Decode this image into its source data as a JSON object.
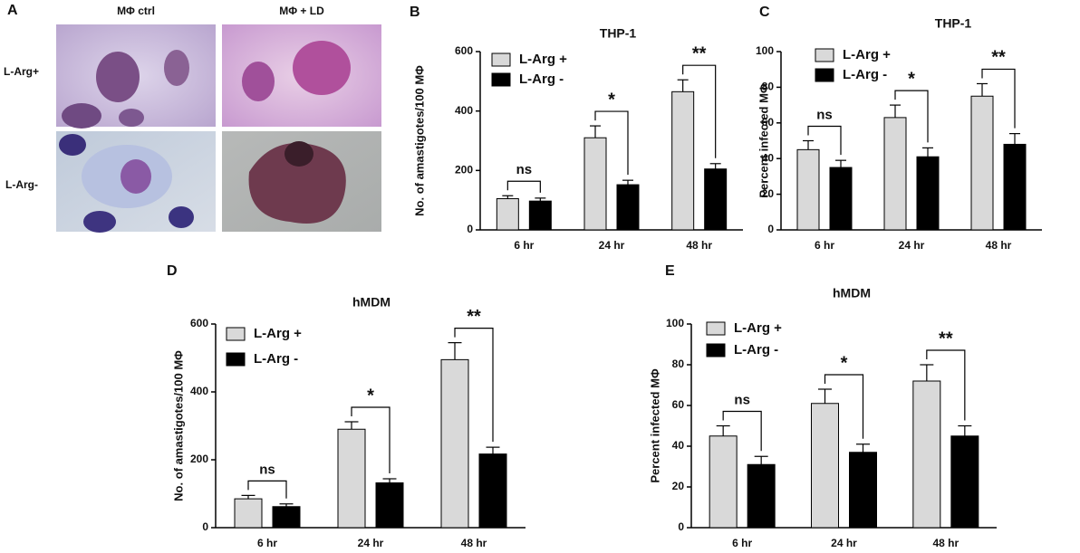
{
  "panel_a": {
    "label": "A",
    "columns": [
      "MΦ ctrl",
      "MΦ + LD"
    ],
    "rows": [
      "L-Arg+",
      "L-Arg-"
    ]
  },
  "chart_data": [
    {
      "type": "bar",
      "panel": "B",
      "title": "THP-1",
      "ylabel": "No. of amastigotes/100 MΦ",
      "categories": [
        "6 hr",
        "24 hr",
        "48 hr"
      ],
      "series": [
        {
          "name": "L-Arg +",
          "color": "#d9d9d9",
          "values": [
            105,
            310,
            465
          ],
          "errors": [
            10,
            40,
            40
          ]
        },
        {
          "name": "L-Arg -",
          "color": "#000000",
          "values": [
            97,
            152,
            205
          ],
          "errors": [
            10,
            15,
            18
          ]
        }
      ],
      "significance": [
        "ns",
        "*",
        "**"
      ],
      "ylim": [
        0,
        600
      ],
      "yticks": [
        0,
        200,
        400,
        600
      ]
    },
    {
      "type": "bar",
      "panel": "C",
      "title": "THP-1",
      "ylabel": "Percent infected MΦ",
      "categories": [
        "6 hr",
        "24 hr",
        "48 hr"
      ],
      "series": [
        {
          "name": "L-Arg +",
          "color": "#d9d9d9",
          "values": [
            45,
            63,
            75
          ],
          "errors": [
            5,
            7,
            7
          ]
        },
        {
          "name": "L-Arg -",
          "color": "#000000",
          "values": [
            35,
            41,
            48
          ],
          "errors": [
            4,
            5,
            6
          ]
        }
      ],
      "significance": [
        "ns",
        "*",
        "**"
      ],
      "ylim": [
        0,
        100
      ],
      "yticks": [
        0,
        20,
        40,
        60,
        80,
        100
      ]
    },
    {
      "type": "bar",
      "panel": "D",
      "title": "hMDM",
      "ylabel": "No. of amastigotes/100 MΦ",
      "categories": [
        "6 hr",
        "24 hr",
        "48 hr"
      ],
      "series": [
        {
          "name": "L-Arg +",
          "color": "#d9d9d9",
          "values": [
            85,
            290,
            495
          ],
          "errors": [
            10,
            22,
            50
          ]
        },
        {
          "name": "L-Arg -",
          "color": "#000000",
          "values": [
            62,
            132,
            217
          ],
          "errors": [
            8,
            12,
            20
          ]
        }
      ],
      "significance": [
        "ns",
        "*",
        "**"
      ],
      "ylim": [
        0,
        600
      ],
      "yticks": [
        0,
        200,
        400,
        600
      ]
    },
    {
      "type": "bar",
      "panel": "E",
      "title": "hMDM",
      "ylabel": "Percent infected MΦ",
      "categories": [
        "6 hr",
        "24 hr",
        "48 hr"
      ],
      "series": [
        {
          "name": "L-Arg +",
          "color": "#d9d9d9",
          "values": [
            45,
            61,
            72
          ],
          "errors": [
            5,
            7,
            8
          ]
        },
        {
          "name": "L-Arg -",
          "color": "#000000",
          "values": [
            31,
            37,
            45
          ],
          "errors": [
            4,
            4,
            5
          ]
        }
      ],
      "significance": [
        "ns",
        "*",
        "**"
      ],
      "ylim": [
        0,
        100
      ],
      "yticks": [
        0,
        20,
        40,
        60,
        80,
        100
      ]
    }
  ]
}
